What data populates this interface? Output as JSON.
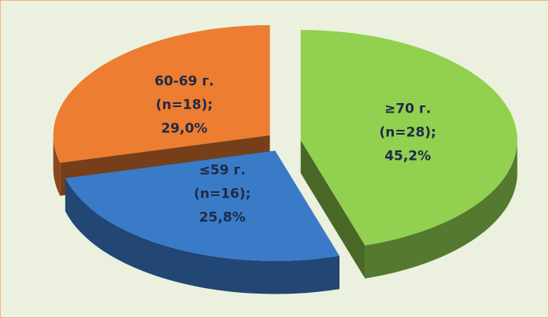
{
  "chart_data": {
    "type": "pie",
    "categories": [
      "≥70 г.",
      "≤59 г.",
      "60-69 г."
    ],
    "values": [
      45.2,
      25.8,
      29.0
    ],
    "value_labels": [
      "45,2%",
      "25,8%",
      "29,0%"
    ],
    "counts": [
      28,
      16,
      18
    ],
    "count_labels": [
      "(n=28);",
      "(n=16);",
      "(n=18);"
    ],
    "colors": [
      "#92d050",
      "#3a7bc8",
      "#ed7d31"
    ]
  }
}
